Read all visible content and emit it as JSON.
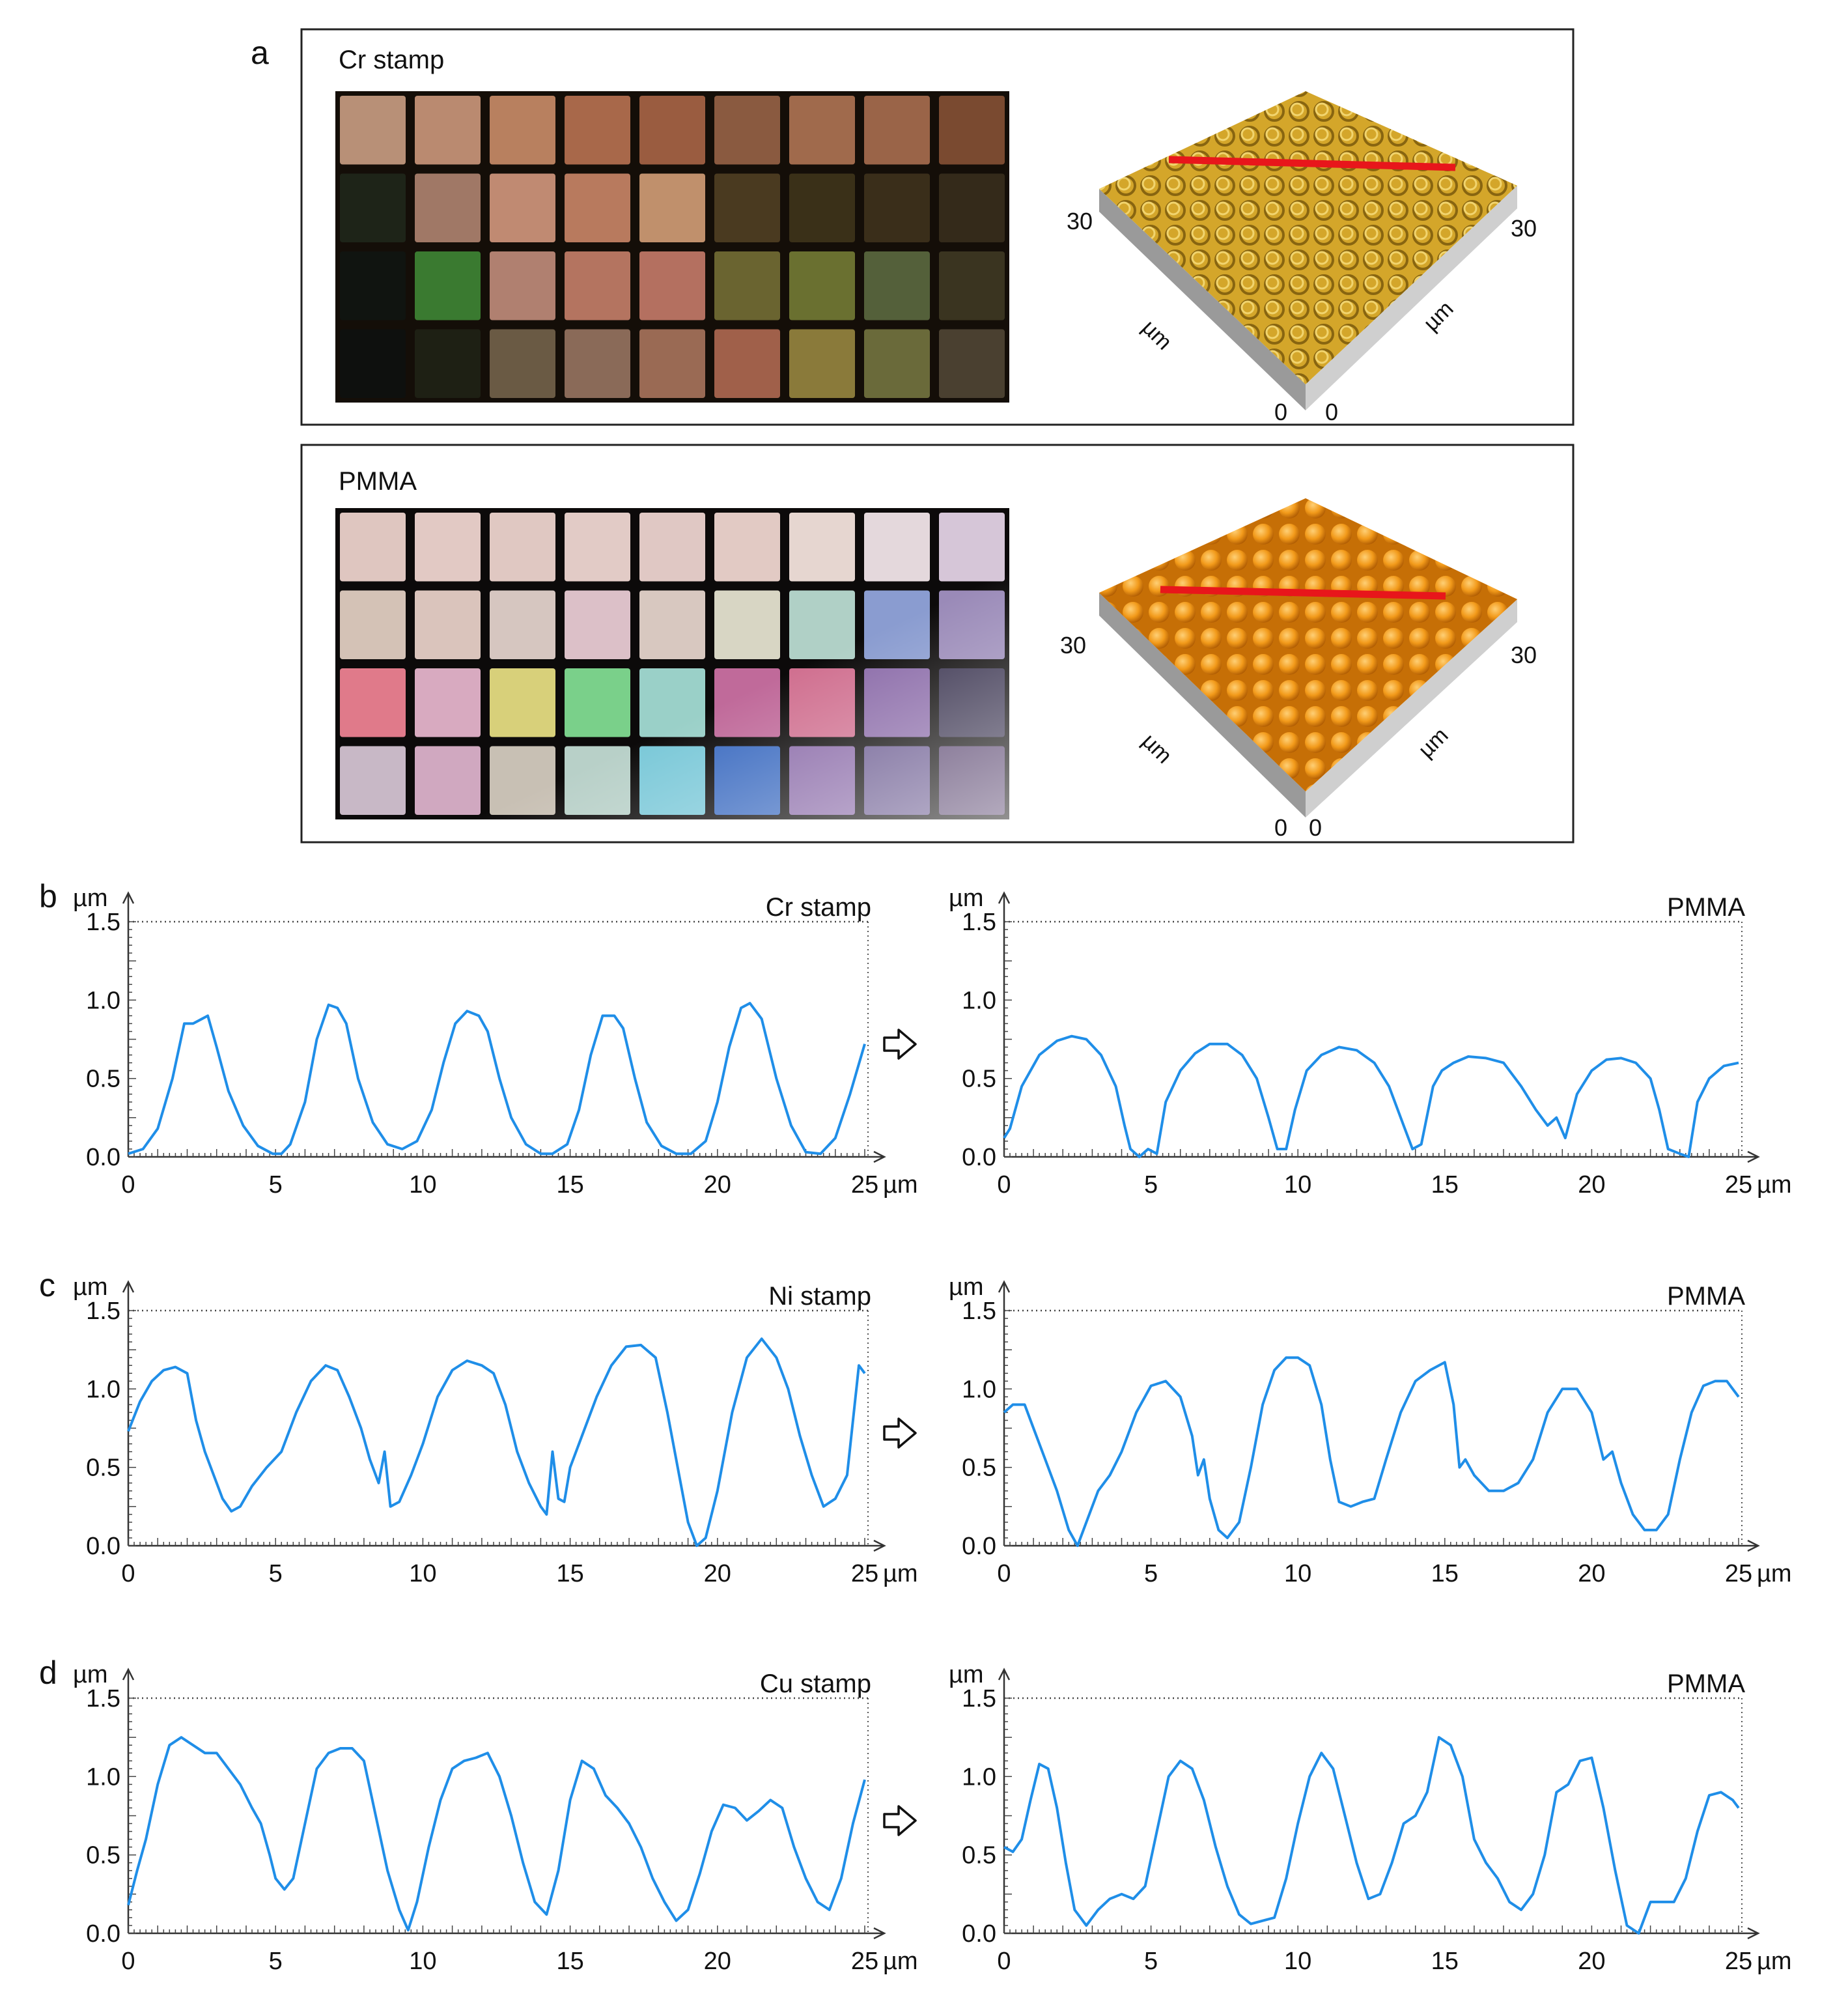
{
  "panel_a": {
    "letter": "a",
    "photo_rows": [
      4,
      4
    ],
    "photo_cols": [
      9,
      9
    ],
    "panels": [
      {
        "label": "Cr stamp",
        "surface_color": "#d4a62a",
        "surface_dark": "#8a6510",
        "bump_style": "ring",
        "axis_labels": {
          "left_max": "30",
          "right_max": "30",
          "left_zero": "0",
          "right_zero": "0",
          "left_unit": "µm",
          "right_unit": "µm"
        }
      },
      {
        "label": "PMMA",
        "surface_color": "#f29a1a",
        "surface_dark": "#b05c00",
        "bump_style": "dome",
        "axis_labels": {
          "left_max": "30",
          "right_max": "30",
          "left_zero": "0",
          "right_zero": "0",
          "left_unit": "µm",
          "right_unit": "µm"
        }
      }
    ],
    "profile_line_color": "#e8161b"
  },
  "line_color": "#1f8ee8",
  "arrow_icon": "hollow-right-arrow-icon",
  "chart_data": [
    {
      "row": "b",
      "panel": "left",
      "type": "line",
      "title": "Cr stamp",
      "ylabel": "µm",
      "xlabel": "µm",
      "xlim": [
        0,
        25
      ],
      "ylim": [
        0,
        1.5
      ],
      "xticks": [
        0,
        5,
        10,
        15,
        20,
        25
      ],
      "yticks": [
        "0.0",
        "0.5",
        "1.0",
        "1.5"
      ],
      "x": [
        0,
        0.5,
        1.0,
        1.5,
        1.9,
        2.2,
        2.5,
        2.7,
        3.0,
        3.4,
        3.9,
        4.4,
        4.9,
        5.2,
        5.5,
        6.0,
        6.4,
        6.8,
        7.1,
        7.4,
        7.8,
        8.3,
        8.8,
        9.3,
        9.8,
        10.3,
        10.7,
        11.1,
        11.5,
        11.9,
        12.2,
        12.6,
        13.0,
        13.5,
        14.0,
        14.4,
        14.9,
        15.3,
        15.7,
        16.1,
        16.5,
        16.8,
        17.2,
        17.6,
        18.1,
        18.6,
        19.1,
        19.6,
        20.0,
        20.4,
        20.8,
        21.1,
        21.5,
        22.0,
        22.5,
        23.0,
        23.5,
        24.0,
        24.5,
        25.0
      ],
      "y": [
        0.02,
        0.05,
        0.18,
        0.5,
        0.85,
        0.85,
        0.88,
        0.9,
        0.7,
        0.42,
        0.2,
        0.07,
        0.02,
        0.02,
        0.08,
        0.35,
        0.75,
        0.97,
        0.95,
        0.85,
        0.5,
        0.22,
        0.08,
        0.05,
        0.1,
        0.3,
        0.6,
        0.85,
        0.93,
        0.9,
        0.8,
        0.5,
        0.25,
        0.08,
        0.02,
        0.02,
        0.08,
        0.3,
        0.65,
        0.9,
        0.9,
        0.82,
        0.5,
        0.22,
        0.07,
        0.02,
        0.02,
        0.1,
        0.35,
        0.7,
        0.95,
        0.98,
        0.88,
        0.5,
        0.2,
        0.03,
        0.02,
        0.12,
        0.4,
        0.72
      ]
    },
    {
      "row": "b",
      "panel": "right",
      "type": "line",
      "title": "PMMA",
      "ylabel": "µm",
      "xlabel": "µm",
      "xlim": [
        0,
        25
      ],
      "ylim": [
        0,
        1.5
      ],
      "xticks": [
        0,
        5,
        10,
        15,
        20,
        25
      ],
      "yticks": [
        "0.0",
        "0.5",
        "1.0",
        "1.5"
      ],
      "x": [
        0,
        0.2,
        0.6,
        1.2,
        1.8,
        2.3,
        2.8,
        3.3,
        3.8,
        4.1,
        4.3,
        4.6,
        4.9,
        5.2,
        5.5,
        6.0,
        6.5,
        7.0,
        7.6,
        8.1,
        8.6,
        9.0,
        9.3,
        9.6,
        9.9,
        10.3,
        10.8,
        11.4,
        12.0,
        12.6,
        13.1,
        13.6,
        13.9,
        14.2,
        14.6,
        14.9,
        15.3,
        15.8,
        16.4,
        17.0,
        17.6,
        18.1,
        18.5,
        18.8,
        19.1,
        19.5,
        20.0,
        20.5,
        21.0,
        21.5,
        22.0,
        22.3,
        22.6,
        23.0,
        23.3,
        23.6,
        24.0,
        24.5,
        25.0
      ],
      "y": [
        0.12,
        0.18,
        0.45,
        0.65,
        0.74,
        0.77,
        0.75,
        0.65,
        0.45,
        0.2,
        0.05,
        0.0,
        0.05,
        0.02,
        0.35,
        0.55,
        0.66,
        0.72,
        0.72,
        0.65,
        0.5,
        0.25,
        0.05,
        0.05,
        0.3,
        0.55,
        0.65,
        0.7,
        0.68,
        0.6,
        0.45,
        0.2,
        0.05,
        0.08,
        0.45,
        0.55,
        0.6,
        0.64,
        0.63,
        0.6,
        0.45,
        0.3,
        0.2,
        0.25,
        0.12,
        0.4,
        0.55,
        0.62,
        0.63,
        0.6,
        0.5,
        0.3,
        0.05,
        0.02,
        0.0,
        0.35,
        0.5,
        0.58,
        0.6
      ]
    },
    {
      "row": "c",
      "panel": "left",
      "type": "line",
      "title": "Ni stamp",
      "ylabel": "µm",
      "xlabel": "µm",
      "xlim": [
        0,
        25
      ],
      "ylim": [
        0,
        1.5
      ],
      "xticks": [
        0,
        5,
        10,
        15,
        20,
        25
      ],
      "yticks": [
        "0.0",
        "0.5",
        "1.0",
        "1.5"
      ],
      "x": [
        0,
        0.4,
        0.8,
        1.2,
        1.6,
        2.0,
        2.3,
        2.6,
        2.9,
        3.2,
        3.5,
        3.8,
        4.2,
        4.7,
        5.2,
        5.7,
        6.2,
        6.7,
        7.1,
        7.5,
        7.9,
        8.2,
        8.5,
        8.7,
        8.9,
        9.2,
        9.6,
        10.0,
        10.5,
        11.0,
        11.5,
        12.0,
        12.4,
        12.8,
        13.2,
        13.6,
        14.0,
        14.2,
        14.4,
        14.6,
        14.8,
        15.0,
        15.4,
        15.9,
        16.4,
        16.9,
        17.4,
        17.9,
        18.3,
        18.7,
        19.0,
        19.3,
        19.6,
        20.0,
        20.5,
        21.0,
        21.5,
        22.0,
        22.4,
        22.8,
        23.2,
        23.6,
        24.0,
        24.4,
        24.8,
        25.0
      ],
      "y": [
        0.73,
        0.92,
        1.05,
        1.12,
        1.14,
        1.1,
        0.8,
        0.6,
        0.45,
        0.3,
        0.22,
        0.25,
        0.38,
        0.5,
        0.6,
        0.85,
        1.05,
        1.15,
        1.12,
        0.95,
        0.75,
        0.55,
        0.4,
        0.6,
        0.25,
        0.28,
        0.45,
        0.65,
        0.95,
        1.12,
        1.18,
        1.15,
        1.1,
        0.9,
        0.6,
        0.4,
        0.25,
        0.2,
        0.6,
        0.3,
        0.28,
        0.5,
        0.7,
        0.95,
        1.15,
        1.27,
        1.28,
        1.2,
        0.85,
        0.45,
        0.15,
        0.0,
        0.05,
        0.35,
        0.85,
        1.2,
        1.32,
        1.2,
        1.0,
        0.7,
        0.45,
        0.25,
        0.3,
        0.45,
        1.15,
        1.1
      ]
    },
    {
      "row": "c",
      "panel": "right",
      "type": "line",
      "title": "PMMA",
      "ylabel": "µm",
      "xlabel": "µm",
      "xlim": [
        0,
        25
      ],
      "ylim": [
        0,
        1.5
      ],
      "xticks": [
        0,
        5,
        10,
        15,
        20,
        25
      ],
      "yticks": [
        "0.0",
        "0.5",
        "1.0",
        "1.5"
      ],
      "x": [
        0,
        0.3,
        0.7,
        1.0,
        1.4,
        1.8,
        2.2,
        2.5,
        2.8,
        3.2,
        3.6,
        4.0,
        4.5,
        5.0,
        5.5,
        6.0,
        6.4,
        6.6,
        6.8,
        7.0,
        7.3,
        7.6,
        8.0,
        8.4,
        8.8,
        9.2,
        9.6,
        10.0,
        10.4,
        10.8,
        11.1,
        11.4,
        11.8,
        12.2,
        12.6,
        13.0,
        13.5,
        14.0,
        14.5,
        15.0,
        15.3,
        15.5,
        15.7,
        16.0,
        16.5,
        17.0,
        17.5,
        18.0,
        18.5,
        19.0,
        19.5,
        20.0,
        20.4,
        20.7,
        21.0,
        21.4,
        21.8,
        22.2,
        22.6,
        23.0,
        23.4,
        23.8,
        24.2,
        24.6,
        25.0
      ],
      "y": [
        0.85,
        0.9,
        0.9,
        0.75,
        0.55,
        0.35,
        0.1,
        0.0,
        0.15,
        0.35,
        0.45,
        0.6,
        0.85,
        1.02,
        1.05,
        0.95,
        0.7,
        0.45,
        0.55,
        0.3,
        0.1,
        0.05,
        0.15,
        0.5,
        0.9,
        1.12,
        1.2,
        1.2,
        1.15,
        0.9,
        0.55,
        0.28,
        0.25,
        0.28,
        0.3,
        0.55,
        0.85,
        1.05,
        1.12,
        1.17,
        0.9,
        0.5,
        0.55,
        0.45,
        0.35,
        0.35,
        0.4,
        0.55,
        0.85,
        1.0,
        1.0,
        0.85,
        0.55,
        0.6,
        0.4,
        0.2,
        0.1,
        0.1,
        0.2,
        0.55,
        0.85,
        1.02,
        1.05,
        1.05,
        0.95
      ]
    },
    {
      "row": "d",
      "panel": "left",
      "type": "line",
      "title": "Cu stamp",
      "ylabel": "µm",
      "xlabel": "µm",
      "xlim": [
        0,
        25
      ],
      "ylim": [
        0,
        1.5
      ],
      "xticks": [
        0,
        5,
        10,
        15,
        20,
        25
      ],
      "yticks": [
        "0.0",
        "0.5",
        "1.0",
        "1.5"
      ],
      "x": [
        0,
        0.3,
        0.6,
        1.0,
        1.4,
        1.8,
        2.2,
        2.6,
        3.0,
        3.4,
        3.8,
        4.2,
        4.5,
        4.8,
        5.0,
        5.3,
        5.6,
        6.0,
        6.4,
        6.8,
        7.2,
        7.6,
        8.0,
        8.4,
        8.8,
        9.2,
        9.5,
        9.8,
        10.2,
        10.6,
        11.0,
        11.4,
        11.8,
        12.2,
        12.6,
        13.0,
        13.4,
        13.8,
        14.2,
        14.6,
        15.0,
        15.4,
        15.8,
        16.2,
        16.6,
        17.0,
        17.4,
        17.8,
        18.2,
        18.6,
        19.0,
        19.4,
        19.8,
        20.2,
        20.6,
        21.0,
        21.4,
        21.8,
        22.2,
        22.6,
        23.0,
        23.4,
        23.8,
        24.2,
        24.6,
        25.0
      ],
      "y": [
        0.18,
        0.4,
        0.6,
        0.95,
        1.2,
        1.25,
        1.2,
        1.15,
        1.15,
        1.05,
        0.95,
        0.8,
        0.7,
        0.5,
        0.35,
        0.28,
        0.35,
        0.7,
        1.05,
        1.15,
        1.18,
        1.18,
        1.1,
        0.75,
        0.4,
        0.15,
        0.02,
        0.2,
        0.55,
        0.85,
        1.05,
        1.1,
        1.12,
        1.15,
        1.0,
        0.75,
        0.45,
        0.2,
        0.12,
        0.4,
        0.85,
        1.1,
        1.05,
        0.88,
        0.8,
        0.7,
        0.55,
        0.35,
        0.2,
        0.08,
        0.15,
        0.38,
        0.65,
        0.82,
        0.8,
        0.72,
        0.78,
        0.85,
        0.8,
        0.55,
        0.35,
        0.2,
        0.15,
        0.35,
        0.7,
        0.98
      ]
    },
    {
      "row": "d",
      "panel": "right",
      "type": "line",
      "title": "PMMA",
      "ylabel": "µm",
      "xlabel": "µm",
      "xlim": [
        0,
        25
      ],
      "ylim": [
        0,
        1.5
      ],
      "xticks": [
        0,
        5,
        10,
        15,
        20,
        25
      ],
      "yticks": [
        "0.0",
        "0.5",
        "1.0",
        "1.5"
      ],
      "x": [
        0,
        0.3,
        0.6,
        0.9,
        1.2,
        1.5,
        1.8,
        2.1,
        2.4,
        2.8,
        3.2,
        3.6,
        4.0,
        4.4,
        4.8,
        5.2,
        5.6,
        6.0,
        6.4,
        6.8,
        7.2,
        7.6,
        8.0,
        8.4,
        8.8,
        9.2,
        9.6,
        10.0,
        10.4,
        10.8,
        11.2,
        11.6,
        12.0,
        12.4,
        12.8,
        13.2,
        13.6,
        14.0,
        14.4,
        14.8,
        15.2,
        15.6,
        16.0,
        16.4,
        16.8,
        17.2,
        17.6,
        18.0,
        18.4,
        18.8,
        19.2,
        19.6,
        20.0,
        20.4,
        20.8,
        21.2,
        21.6,
        22.0,
        22.4,
        22.8,
        23.2,
        23.6,
        24.0,
        24.4,
        24.8,
        25.0
      ],
      "y": [
        0.55,
        0.52,
        0.6,
        0.85,
        1.08,
        1.05,
        0.8,
        0.45,
        0.15,
        0.05,
        0.15,
        0.22,
        0.25,
        0.22,
        0.3,
        0.65,
        1.0,
        1.1,
        1.05,
        0.85,
        0.55,
        0.3,
        0.12,
        0.06,
        0.08,
        0.1,
        0.35,
        0.7,
        1.0,
        1.15,
        1.05,
        0.75,
        0.45,
        0.22,
        0.25,
        0.45,
        0.7,
        0.75,
        0.9,
        1.25,
        1.2,
        1.0,
        0.6,
        0.45,
        0.35,
        0.2,
        0.15,
        0.25,
        0.5,
        0.9,
        0.95,
        1.1,
        1.12,
        0.8,
        0.4,
        0.05,
        0.0,
        0.2,
        0.2,
        0.2,
        0.35,
        0.65,
        0.88,
        0.9,
        0.85,
        0.8
      ]
    }
  ]
}
